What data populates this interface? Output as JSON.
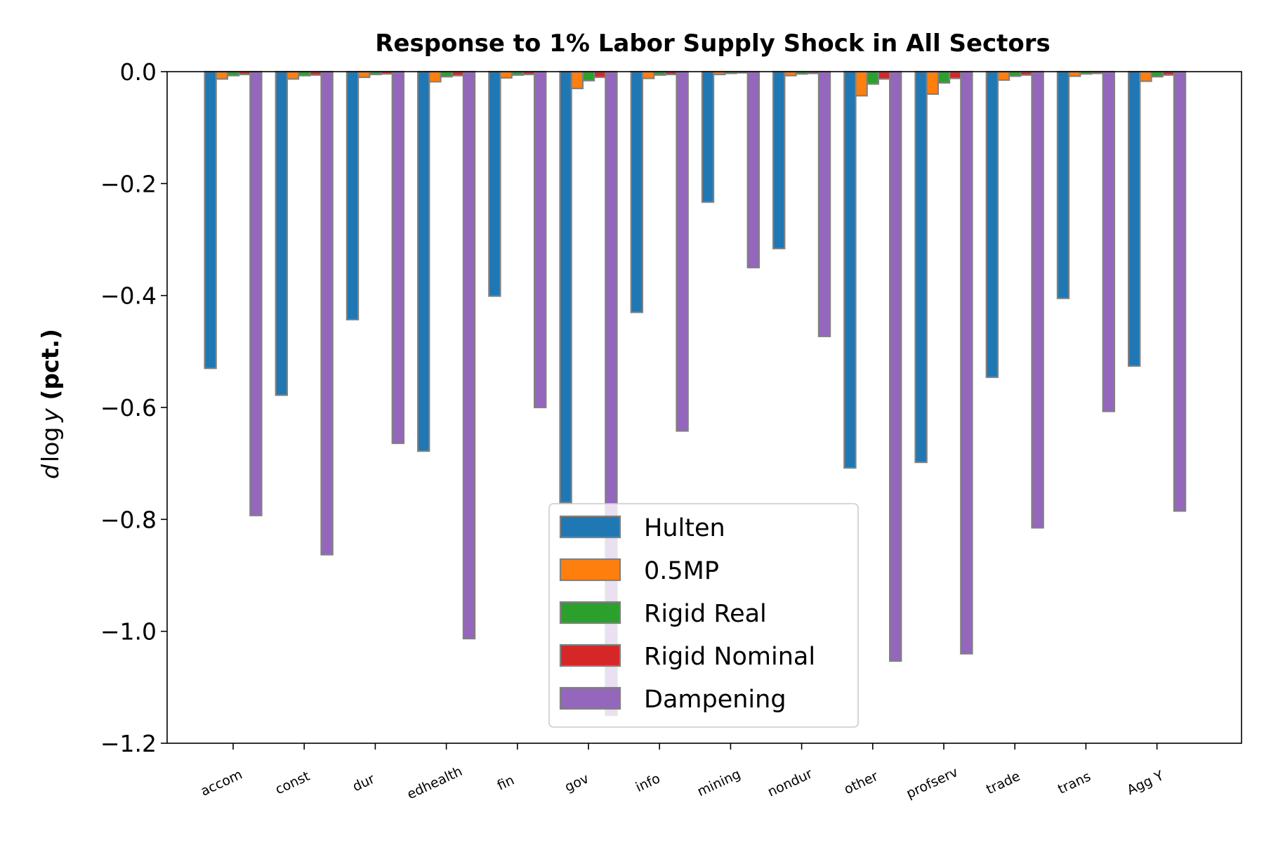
{
  "chart_data": {
    "type": "bar",
    "title": "Response to 1% Labor Supply Shock in All Sectors",
    "ylabel_italic": "d",
    "ylabel_log": "log",
    "ylabel_var": "y",
    "ylabel_bold": " (pct.)",
    "xlabel": "",
    "ylim": [
      -1.2,
      0.0
    ],
    "yticks": [
      0.0,
      -0.2,
      -0.4,
      -0.6,
      -0.8,
      -1.0,
      -1.2
    ],
    "ytick_labels": [
      "0.0",
      "−0.2",
      "−0.4",
      "−0.6",
      "−0.8",
      "−1.0",
      "−1.2"
    ],
    "categories": [
      "accom",
      "const",
      "dur",
      "edhealth",
      "fin",
      "gov",
      "info",
      "mining",
      "nondur",
      "other",
      "profserv",
      "trade",
      "trans",
      "Agg Y"
    ],
    "series": [
      {
        "name": "Hulten",
        "color": "#1f77b4",
        "values": [
          -0.53,
          -0.578,
          -0.443,
          -0.678,
          -0.401,
          -0.77,
          -0.43,
          -0.233,
          -0.316,
          -0.708,
          -0.698,
          -0.546,
          -0.405,
          -0.526
        ]
      },
      {
        "name": "0.5MP",
        "color": "#ff7f0e",
        "values": [
          -0.013,
          -0.013,
          -0.01,
          -0.018,
          -0.011,
          -0.03,
          -0.012,
          -0.005,
          -0.007,
          -0.043,
          -0.04,
          -0.015,
          -0.008,
          -0.017
        ]
      },
      {
        "name": "Rigid Real",
        "color": "#2ca02c",
        "values": [
          -0.007,
          -0.007,
          -0.005,
          -0.009,
          -0.006,
          -0.016,
          -0.006,
          -0.003,
          -0.004,
          -0.022,
          -0.02,
          -0.008,
          -0.004,
          -0.009
        ]
      },
      {
        "name": "Rigid Nominal",
        "color": "#d62728",
        "values": [
          -0.005,
          -0.006,
          -0.004,
          -0.007,
          -0.005,
          -0.01,
          -0.005,
          -0.002,
          -0.003,
          -0.013,
          -0.012,
          -0.006,
          -0.003,
          -0.006
        ]
      },
      {
        "name": "Dampening",
        "color": "#9467bd",
        "values": [
          -0.793,
          -0.863,
          -0.664,
          -1.013,
          -0.6,
          -1.15,
          -0.642,
          -0.35,
          -0.473,
          -1.053,
          -1.04,
          -0.815,
          -0.607,
          -0.785
        ]
      }
    ],
    "legend_location": "lower center",
    "grid": false
  }
}
